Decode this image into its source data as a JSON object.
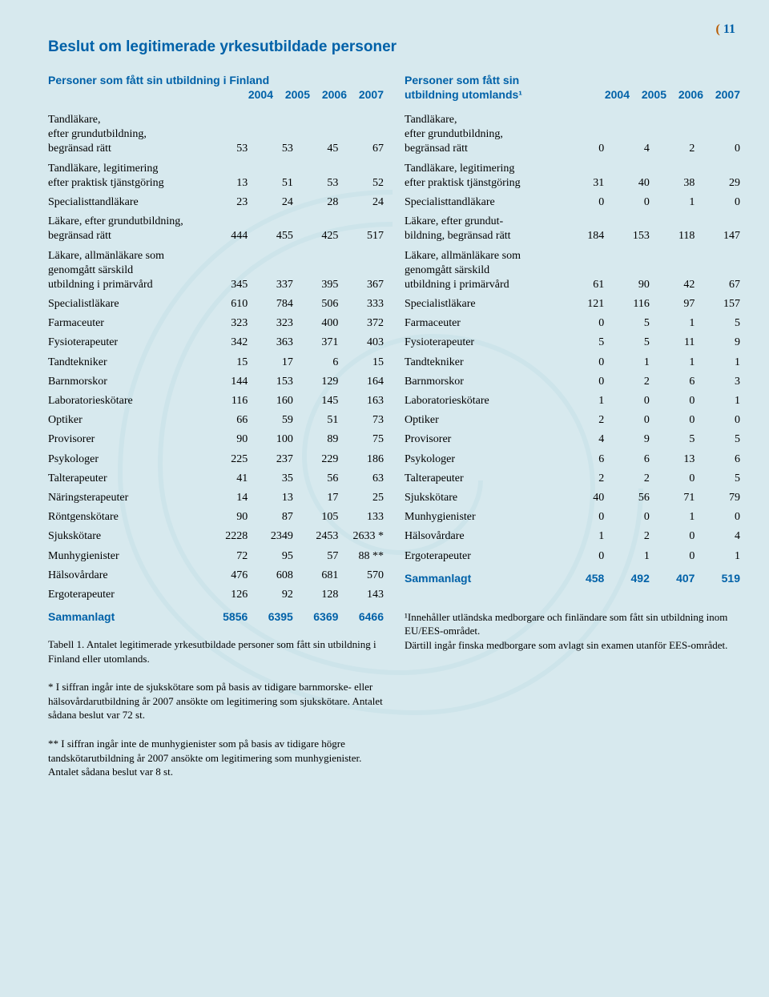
{
  "page_number": "11",
  "section_title": "Beslut om legitimerade yrkesutbildade personer",
  "colors": {
    "background": "#d7e9ee",
    "accent_blue": "#0061a8",
    "accent_orange": "#b85a00",
    "swirl": "#bcdbe4"
  },
  "left": {
    "title_line1": "Personer som fått sin utbildning i Finland",
    "title_line2": "",
    "years": [
      "2004",
      "2005",
      "2006",
      "2007"
    ],
    "rows": [
      {
        "label": "Tandläkare,\nefter grundutbildning,\nbegränsad rätt",
        "v": [
          "53",
          "53",
          "45",
          "67"
        ]
      },
      {
        "label": "Tandläkare, legitimering\nefter praktisk tjänstgöring",
        "v": [
          "13",
          "51",
          "53",
          "52"
        ]
      },
      {
        "label": "Specialisttandläkare",
        "v": [
          "23",
          "24",
          "28",
          "24"
        ]
      },
      {
        "label": "Läkare, efter grundutbildning,\nbegränsad rätt",
        "v": [
          "444",
          "455",
          "425",
          "517"
        ]
      },
      {
        "label": "Läkare, allmänläkare som\ngenomgått särskild\nutbildning i primärvård",
        "v": [
          "345",
          "337",
          "395",
          "367"
        ]
      },
      {
        "label": "Specialistläkare",
        "v": [
          "610",
          "784",
          "506",
          "333"
        ]
      },
      {
        "label": "Farmaceuter",
        "v": [
          "323",
          "323",
          "400",
          "372"
        ]
      },
      {
        "label": "Fysioterapeuter",
        "v": [
          "342",
          "363",
          "371",
          "403"
        ]
      },
      {
        "label": "Tandtekniker",
        "v": [
          "15",
          "17",
          "6",
          "15"
        ]
      },
      {
        "label": "Barnmorskor",
        "v": [
          "144",
          "153",
          "129",
          "164"
        ]
      },
      {
        "label": "Laboratorieskötare",
        "v": [
          "116",
          "160",
          "145",
          "163"
        ]
      },
      {
        "label": "Optiker",
        "v": [
          "66",
          "59",
          "51",
          "73"
        ]
      },
      {
        "label": "Provisorer",
        "v": [
          "90",
          "100",
          "89",
          "75"
        ]
      },
      {
        "label": "Psykologer",
        "v": [
          "225",
          "237",
          "229",
          "186"
        ]
      },
      {
        "label": "Talterapeuter",
        "v": [
          "41",
          "35",
          "56",
          "63"
        ]
      },
      {
        "label": "Näringsterapeuter",
        "v": [
          "14",
          "13",
          "17",
          "25"
        ]
      },
      {
        "label": "Röntgenskötare",
        "v": [
          "90",
          "87",
          "105",
          "133"
        ]
      },
      {
        "label": "Sjukskötare",
        "v": [
          "2228",
          "2349",
          "2453",
          "2633 *"
        ]
      },
      {
        "label": "Munhygienister",
        "v": [
          "72",
          "95",
          "57",
          "88 **"
        ]
      },
      {
        "label": "Hälsovårdare",
        "v": [
          "476",
          "608",
          "681",
          "570"
        ]
      },
      {
        "label": "Ergoterapeuter",
        "v": [
          "126",
          "92",
          "128",
          "143"
        ]
      }
    ],
    "total_label": "Sammanlagt",
    "total_values": [
      "5856",
      "6395",
      "6369",
      "6466"
    ],
    "caption": "Tabell 1. Antalet legitimerade yrkesutbildade personer som fått sin utbildning i Finland eller utomlands."
  },
  "right": {
    "title_line1": "Personer som fått sin",
    "title_line2": "utbildning utomlands¹",
    "years": [
      "2004",
      "2005",
      "2006",
      "2007"
    ],
    "rows": [
      {
        "label": "Tandläkare,\nefter grundutbildning,\nbegränsad rätt",
        "v": [
          "0",
          "4",
          "2",
          "0"
        ]
      },
      {
        "label": "Tandläkare, legitimering\nefter praktisk tjänstgöring",
        "v": [
          "31",
          "40",
          "38",
          "29"
        ]
      },
      {
        "label": "Specialisttandläkare",
        "v": [
          "0",
          "0",
          "1",
          "0"
        ]
      },
      {
        "label": "Läkare, efter grundut-\nbildning, begränsad rätt",
        "v": [
          "184",
          "153",
          "118",
          "147"
        ]
      },
      {
        "label": "Läkare, allmänläkare som\ngenomgått särskild\nutbildning i primärvård",
        "v": [
          "61",
          "90",
          "42",
          "67"
        ]
      },
      {
        "label": "Specialistläkare",
        "v": [
          "121",
          "116",
          "97",
          "157"
        ]
      },
      {
        "label": "Farmaceuter",
        "v": [
          "0",
          "5",
          "1",
          "5"
        ]
      },
      {
        "label": "Fysioterapeuter",
        "v": [
          "5",
          "5",
          "11",
          "9"
        ]
      },
      {
        "label": "Tandtekniker",
        "v": [
          "0",
          "1",
          "1",
          "1"
        ]
      },
      {
        "label": "Barnmorskor",
        "v": [
          "0",
          "2",
          "6",
          "3"
        ]
      },
      {
        "label": "Laboratorieskötare",
        "v": [
          "1",
          "0",
          "0",
          "1"
        ]
      },
      {
        "label": "Optiker",
        "v": [
          "2",
          "0",
          "0",
          "0"
        ]
      },
      {
        "label": "Provisorer",
        "v": [
          "4",
          "9",
          "5",
          "5"
        ]
      },
      {
        "label": "Psykologer",
        "v": [
          "6",
          "6",
          "13",
          "6"
        ]
      },
      {
        "label": "Talterapeuter",
        "v": [
          "2",
          "2",
          "0",
          "5"
        ]
      },
      {
        "label": "Sjukskötare",
        "v": [
          "40",
          "56",
          "71",
          "79"
        ]
      },
      {
        "label": "Munhygienister",
        "v": [
          "0",
          "0",
          "1",
          "0"
        ]
      },
      {
        "label": "Hälsovårdare",
        "v": [
          "1",
          "2",
          "0",
          "4"
        ]
      },
      {
        "label": "Ergoterapeuter",
        "v": [
          "0",
          "1",
          "0",
          "1"
        ]
      }
    ],
    "total_label": "Sammanlagt",
    "total_values": [
      "458",
      "492",
      "407",
      "519"
    ],
    "footnote1": "¹Innehåller utländska medborgare och finländare som fått sin utbildning inom EU/EES-området.\nDärtill ingår finska medborgare som avlagt sin examen utanför EES-området."
  },
  "footnotes": {
    "star": "* I siffran ingår inte de sjukskötare som på basis av tidigare barnmorske- eller hälsovårdarutbildning år 2007 ansökte om legitimering som sjukskötare. Antalet sådana beslut var 72 st.",
    "dstar": "** I siffran ingår inte de munhygienister som på basis av tidigare högre tandskötarutbildning år 2007 ansökte om legitimering som munhygienister.\nAntalet sådana beslut var 8 st."
  }
}
